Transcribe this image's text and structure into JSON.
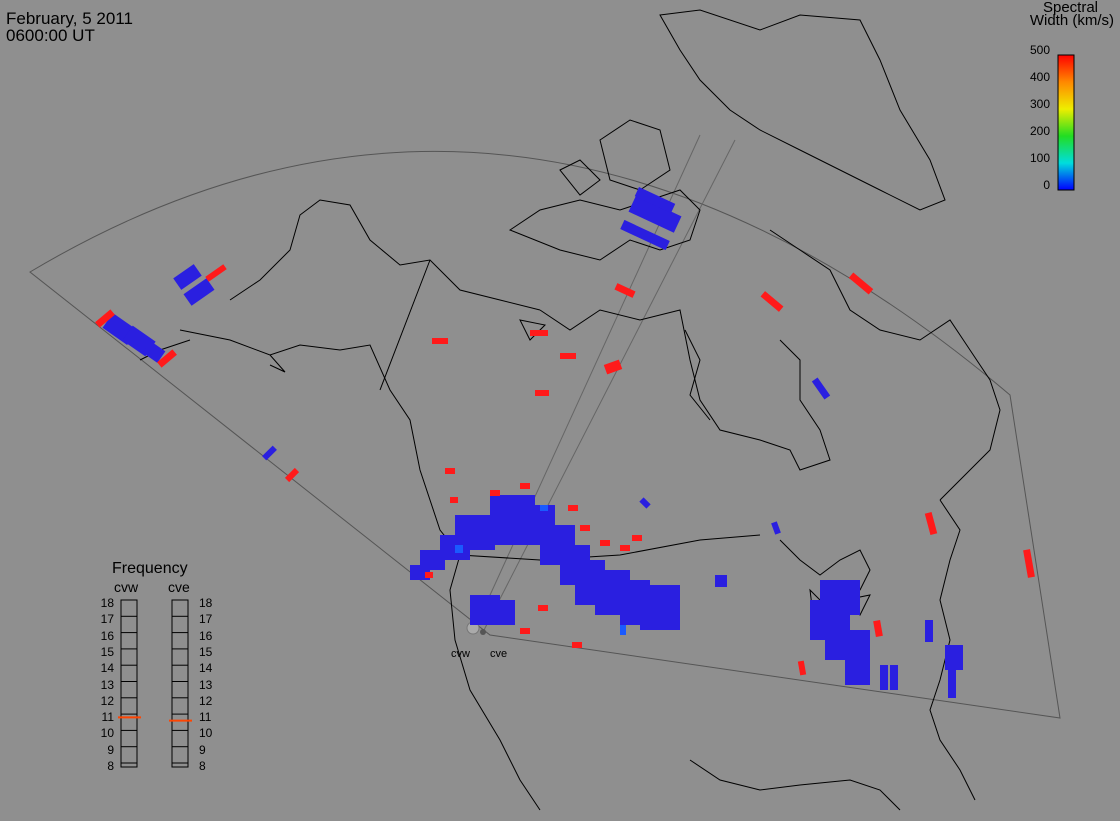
{
  "header": {
    "date": "February, 5 2011",
    "time": "0600:00 UT"
  },
  "colorbar": {
    "title_line1": "Spectral",
    "title_line2": "Width (km/s)",
    "ticks": [
      "500",
      "400",
      "300",
      "200",
      "100",
      "0"
    ],
    "colors": [
      "#ff0000",
      "#ff8800",
      "#eeee00",
      "#22dd22",
      "#00dddd",
      "#0000ff"
    ]
  },
  "frequency": {
    "title": "Frequency",
    "radars": [
      "cvw",
      "cve"
    ],
    "ticks": [
      "18",
      "17",
      "16",
      "15",
      "14",
      "13",
      "12",
      "11",
      "10",
      "9",
      "8"
    ],
    "cvw_mhz": 10.8,
    "cve_mhz": 10.6,
    "marker_color": "#ff4400"
  },
  "sites": [
    "cvw",
    "cve"
  ],
  "colors": {
    "background": "#8f8f8f",
    "low_width": "#2a1fe0",
    "high_width": "#ff1a1a",
    "mid_width": "#1a5aff",
    "coast": "#000000"
  }
}
